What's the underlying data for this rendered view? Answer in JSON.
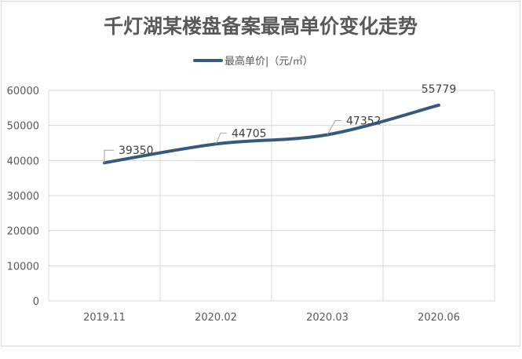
{
  "chart_data": {
    "type": "line",
    "title": "千灯湖某楼盘备案最高单价变化走势",
    "categories": [
      "2019.11",
      "2020.02",
      "2020.03",
      "2020.06"
    ],
    "series": [
      {
        "name": "最高单价|（元/㎡）",
        "values": [
          39350,
          44705,
          47352,
          55779
        ],
        "color": "#355a7e"
      }
    ],
    "data_labels": [
      "39350",
      "44705",
      "47352",
      "55779"
    ],
    "y_ticks": [
      "0",
      "10000",
      "20000",
      "30000",
      "40000",
      "50000",
      "60000"
    ],
    "ylim": [
      0,
      60000
    ],
    "smooth": true,
    "grid": true,
    "legend": "top"
  }
}
